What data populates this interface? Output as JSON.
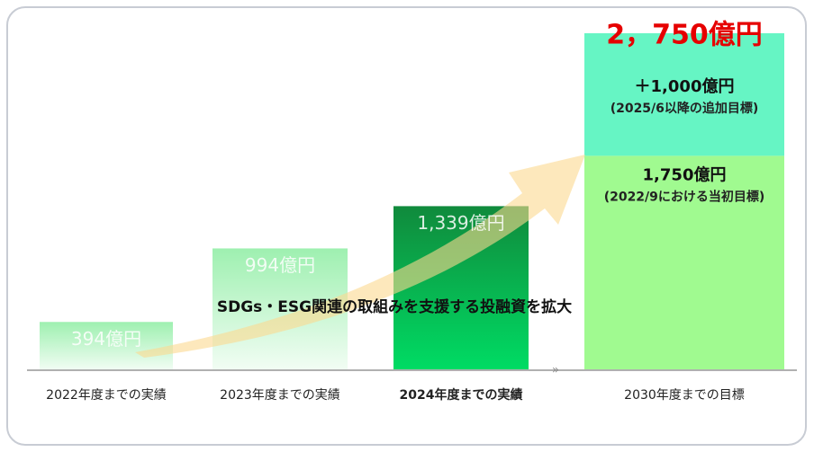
{
  "chart_data": {
    "type": "bar",
    "categories": [
      "2022年度までの実績",
      "2023年度までの実績",
      "2024年度までの実績",
      "2030年度までの目標"
    ],
    "values": [
      394,
      994,
      1339,
      1750
    ],
    "value_labels": [
      "394億円",
      "994億円",
      "1,339億円",
      "1,750億円"
    ],
    "colors": [
      "#9ef0b0",
      "#9ef0b0",
      "#12a847",
      "#a0fa90"
    ],
    "highlight_category": 2,
    "stack": {
      "category_index": 3,
      "value": 1000,
      "value_label": "＋1,000億円",
      "note": "(2025/6以降の追加目標)",
      "color": "#66f5c4"
    },
    "base_note": "(2022/9における当初目標)",
    "total_label": "2，750億円",
    "arrow_label": "SDGs・ESG関連の取組みを支援する投融資を拡大"
  }
}
